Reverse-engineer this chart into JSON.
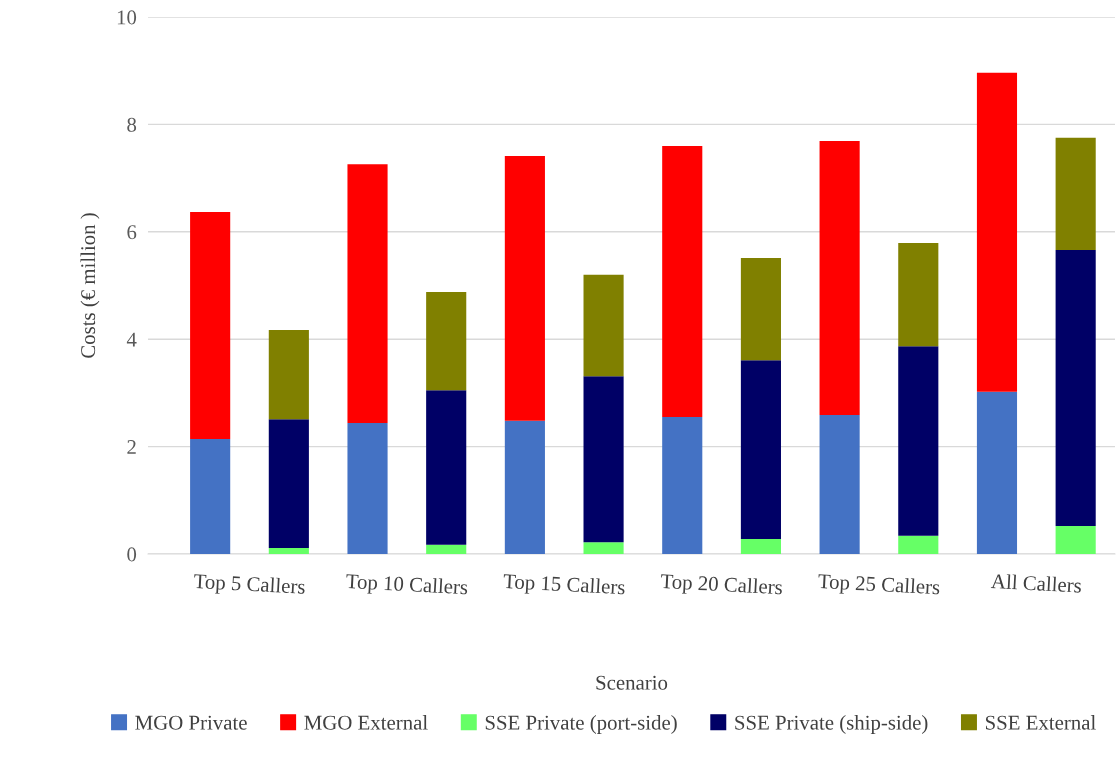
{
  "chart_data": {
    "type": "bar",
    "stacked": true,
    "xlabel": "Scenario",
    "ylabel": "Costs (€ million )",
    "categories": [
      "Top 5 Callers",
      null,
      "Top 10 Callers",
      null,
      "Top 15 Callers",
      null,
      "Top 20 Callers",
      null,
      "Top 25 Callers",
      null,
      "All Callers",
      null
    ],
    "series": [
      {
        "name": "MGO Private",
        "color": "#4472c4",
        "values": [
          2.14,
          null,
          2.44,
          null,
          2.48,
          null,
          2.55,
          null,
          2.59,
          null,
          3.02,
          null
        ]
      },
      {
        "name": "MGO External",
        "color": "#ff0000",
        "values": [
          4.23,
          null,
          4.82,
          null,
          4.93,
          null,
          5.05,
          null,
          5.1,
          null,
          5.94,
          null
        ]
      },
      {
        "name": "SSE Private (port-side)",
        "color": "#66ff66",
        "values": [
          null,
          0.11,
          null,
          0.17,
          null,
          0.22,
          null,
          0.28,
          null,
          0.34,
          null,
          0.52
        ]
      },
      {
        "name": "SSE Private (ship-side)",
        "color": "#000066",
        "values": [
          null,
          2.4,
          null,
          2.88,
          null,
          3.09,
          null,
          3.33,
          null,
          3.53,
          null,
          5.14
        ]
      },
      {
        "name": "SSE External",
        "color": "#808000",
        "values": [
          null,
          1.66,
          null,
          1.83,
          null,
          1.89,
          null,
          1.9,
          null,
          1.92,
          null,
          2.09
        ]
      }
    ],
    "ylim": [
      0,
      10
    ],
    "yticks": [
      0,
      2,
      4,
      6,
      8,
      10
    ],
    "grid": "y",
    "legend": "bottom right"
  }
}
